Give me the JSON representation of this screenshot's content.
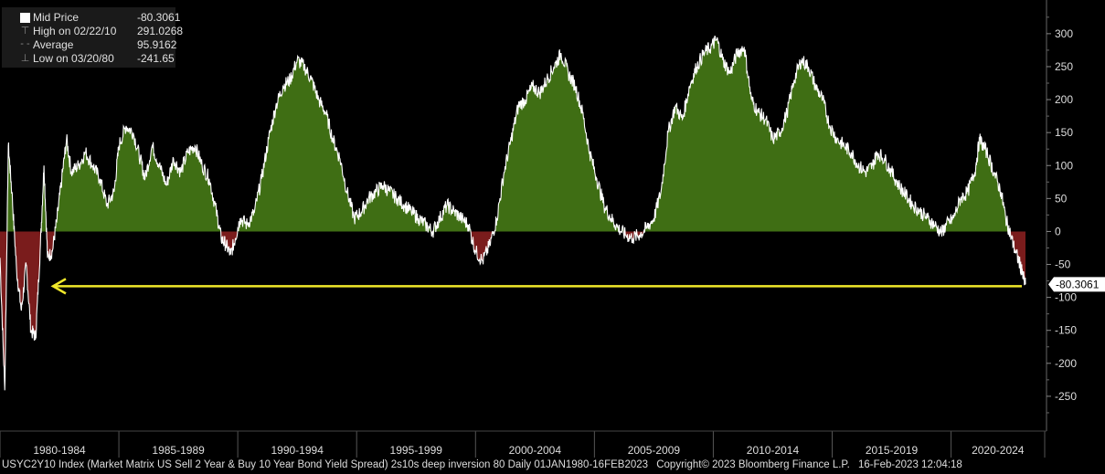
{
  "legend": {
    "rows": [
      {
        "label": "Mid Price",
        "value": "-80.3061"
      },
      {
        "label": "High on 02/22/10",
        "value": "291.0268"
      },
      {
        "label": "Average",
        "value": "95.9162"
      },
      {
        "label": "Low on 03/20/80",
        "value": "-241.65"
      }
    ]
  },
  "footer": {
    "description": "USYC2Y10 Index (Market Matrix US Sell 2 Year & Buy 10 Year Bond Yield Spread) 2s10s deep inversion 80  Daily 01JAN1980-16FEB2023",
    "copyright": "Copyright© 2023 Bloomberg Finance L.P.",
    "timestamp": "16-Feb-2023 12:04:18"
  },
  "colors": {
    "background": "#000000",
    "positive_fill": "#3f6e14",
    "negative_fill": "#7a1c1c",
    "line": "#ffffff",
    "arrow": "#f0e82a"
  },
  "chart_data": {
    "type": "area",
    "x_unit": "year",
    "x_range": [
      1980.0,
      2023.13
    ],
    "ylim": [
      -300,
      340
    ],
    "y_ticks": [
      300,
      250,
      200,
      150,
      100,
      50,
      0,
      -50,
      -100,
      -150,
      -200,
      -250
    ],
    "period_labels": [
      "1980-1984",
      "1985-1989",
      "1990-1994",
      "1995-1999",
      "2000-2004",
      "2005-2009",
      "2010-2014",
      "2015-2019",
      "2020-2024"
    ],
    "current_value_label": "-80.3061",
    "current_value": -80.3061,
    "arrow_level": -83,
    "points": [
      [
        1980.0,
        -40
      ],
      [
        1980.2,
        -241
      ],
      [
        1980.35,
        130
      ],
      [
        1980.5,
        60
      ],
      [
        1980.7,
        -60
      ],
      [
        1980.9,
        -120
      ],
      [
        1981.1,
        -50
      ],
      [
        1981.3,
        -150
      ],
      [
        1981.5,
        -160
      ],
      [
        1981.7,
        -20
      ],
      [
        1981.85,
        100
      ],
      [
        1982.0,
        -40
      ],
      [
        1982.2,
        -30
      ],
      [
        1982.4,
        20
      ],
      [
        1982.6,
        80
      ],
      [
        1982.8,
        140
      ],
      [
        1983.0,
        90
      ],
      [
        1983.3,
        100
      ],
      [
        1983.6,
        120
      ],
      [
        1983.9,
        100
      ],
      [
        1984.2,
        80
      ],
      [
        1984.5,
        40
      ],
      [
        1984.8,
        60
      ],
      [
        1985.0,
        130
      ],
      [
        1985.3,
        160
      ],
      [
        1985.6,
        150
      ],
      [
        1985.9,
        110
      ],
      [
        1986.1,
        80
      ],
      [
        1986.4,
        130
      ],
      [
        1986.7,
        100
      ],
      [
        1987.0,
        70
      ],
      [
        1987.3,
        110
      ],
      [
        1987.6,
        90
      ],
      [
        1987.9,
        120
      ],
      [
        1988.2,
        130
      ],
      [
        1988.5,
        100
      ],
      [
        1988.8,
        80
      ],
      [
        1989.1,
        30
      ],
      [
        1989.3,
        -10
      ],
      [
        1989.5,
        -20
      ],
      [
        1989.7,
        -35
      ],
      [
        1989.9,
        -10
      ],
      [
        1990.1,
        20
      ],
      [
        1990.4,
        10
      ],
      [
        1990.7,
        30
      ],
      [
        1991.0,
        80
      ],
      [
        1991.3,
        140
      ],
      [
        1991.6,
        190
      ],
      [
        1991.9,
        220
      ],
      [
        1992.2,
        230
      ],
      [
        1992.5,
        260
      ],
      [
        1992.8,
        250
      ],
      [
        1993.1,
        230
      ],
      [
        1993.4,
        200
      ],
      [
        1993.7,
        180
      ],
      [
        1994.0,
        140
      ],
      [
        1994.3,
        110
      ],
      [
        1994.6,
        60
      ],
      [
        1994.9,
        20
      ],
      [
        1995.2,
        30
      ],
      [
        1995.5,
        50
      ],
      [
        1995.8,
        60
      ],
      [
        1996.1,
        70
      ],
      [
        1996.4,
        60
      ],
      [
        1996.7,
        50
      ],
      [
        1997.0,
        40
      ],
      [
        1997.3,
        30
      ],
      [
        1997.6,
        20
      ],
      [
        1997.9,
        10
      ],
      [
        1998.2,
        0
      ],
      [
        1998.5,
        20
      ],
      [
        1998.8,
        40
      ],
      [
        1999.1,
        30
      ],
      [
        1999.4,
        20
      ],
      [
        1999.7,
        10
      ],
      [
        2000.0,
        -30
      ],
      [
        2000.3,
        -45
      ],
      [
        2000.6,
        -20
      ],
      [
        2000.9,
        20
      ],
      [
        2001.2,
        90
      ],
      [
        2001.5,
        140
      ],
      [
        2001.8,
        190
      ],
      [
        2002.1,
        200
      ],
      [
        2002.4,
        220
      ],
      [
        2002.7,
        210
      ],
      [
        2003.0,
        230
      ],
      [
        2003.3,
        250
      ],
      [
        2003.6,
        270
      ],
      [
        2003.9,
        240
      ],
      [
        2004.2,
        220
      ],
      [
        2004.5,
        180
      ],
      [
        2004.8,
        120
      ],
      [
        2005.1,
        80
      ],
      [
        2005.4,
        40
      ],
      [
        2005.7,
        20
      ],
      [
        2006.0,
        5
      ],
      [
        2006.3,
        -5
      ],
      [
        2006.6,
        -10
      ],
      [
        2006.9,
        -5
      ],
      [
        2007.2,
        5
      ],
      [
        2007.5,
        20
      ],
      [
        2007.8,
        60
      ],
      [
        2008.1,
        150
      ],
      [
        2008.4,
        190
      ],
      [
        2008.7,
        170
      ],
      [
        2009.0,
        220
      ],
      [
        2009.3,
        250
      ],
      [
        2009.6,
        270
      ],
      [
        2009.9,
        280
      ],
      [
        2010.15,
        291
      ],
      [
        2010.4,
        260
      ],
      [
        2010.7,
        240
      ],
      [
        2011.0,
        270
      ],
      [
        2011.3,
        280
      ],
      [
        2011.6,
        200
      ],
      [
        2011.9,
        180
      ],
      [
        2012.2,
        170
      ],
      [
        2012.5,
        140
      ],
      [
        2012.8,
        150
      ],
      [
        2013.1,
        180
      ],
      [
        2013.4,
        230
      ],
      [
        2013.7,
        260
      ],
      [
        2014.0,
        250
      ],
      [
        2014.3,
        220
      ],
      [
        2014.6,
        200
      ],
      [
        2014.9,
        160
      ],
      [
        2015.2,
        140
      ],
      [
        2015.5,
        130
      ],
      [
        2015.8,
        120
      ],
      [
        2016.1,
        100
      ],
      [
        2016.4,
        90
      ],
      [
        2016.7,
        100
      ],
      [
        2016.9,
        120
      ],
      [
        2017.2,
        110
      ],
      [
        2017.5,
        90
      ],
      [
        2017.8,
        70
      ],
      [
        2018.1,
        55
      ],
      [
        2018.4,
        40
      ],
      [
        2018.7,
        30
      ],
      [
        2019.0,
        20
      ],
      [
        2019.3,
        10
      ],
      [
        2019.6,
        -2
      ],
      [
        2019.8,
        10
      ],
      [
        2020.1,
        20
      ],
      [
        2020.4,
        50
      ],
      [
        2020.7,
        60
      ],
      [
        2021.0,
        90
      ],
      [
        2021.2,
        140
      ],
      [
        2021.5,
        120
      ],
      [
        2021.8,
        90
      ],
      [
        2022.1,
        60
      ],
      [
        2022.3,
        20
      ],
      [
        2022.5,
        -5
      ],
      [
        2022.7,
        -30
      ],
      [
        2022.9,
        -50
      ],
      [
        2023.0,
        -65
      ],
      [
        2023.13,
        -80.3
      ]
    ]
  }
}
